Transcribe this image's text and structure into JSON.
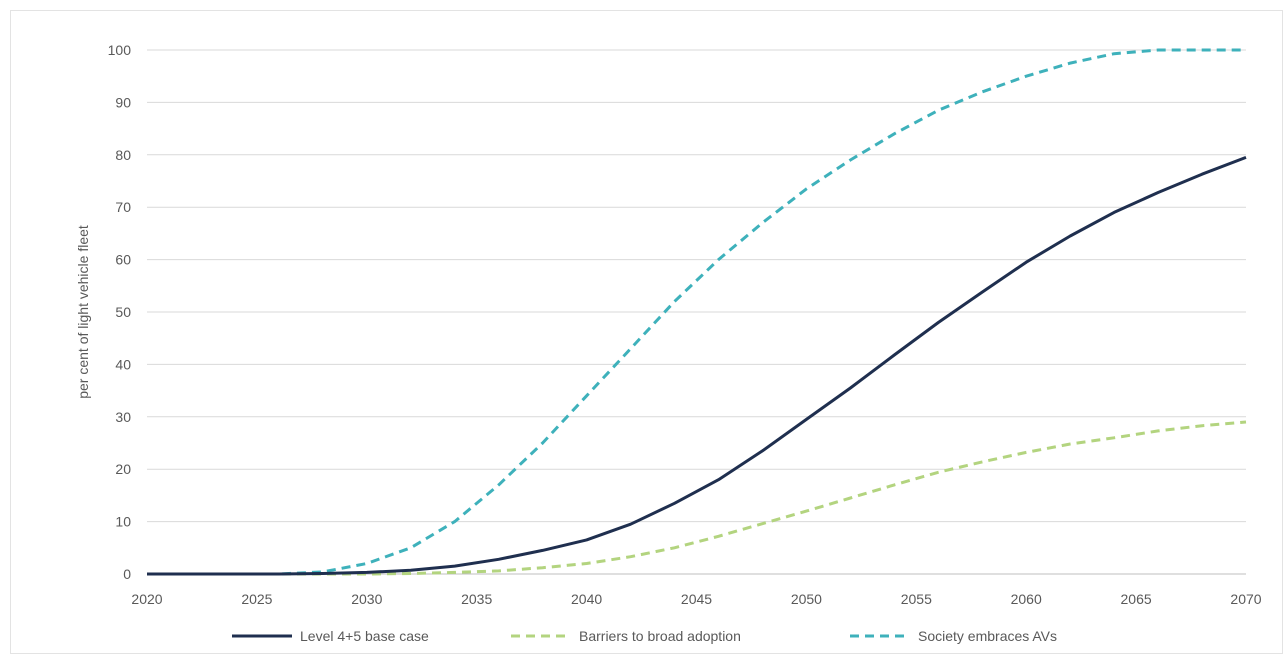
{
  "chart_data": {
    "type": "line",
    "title": "",
    "xlabel": "",
    "ylabel": "per cent of light vehicle fleet",
    "xlim": [
      2020,
      2070
    ],
    "ylim": [
      0,
      100
    ],
    "x_ticks": [
      "2020",
      "2025",
      "2030",
      "2035",
      "2040",
      "2045",
      "2050",
      "2055",
      "2060",
      "2065",
      "2070"
    ],
    "y_ticks": [
      "0",
      "10",
      "20",
      "30",
      "40",
      "50",
      "60",
      "70",
      "80",
      "90",
      "100"
    ],
    "grid": "horizontal",
    "legend_position": "bottom",
    "x": [
      2020,
      2022,
      2024,
      2026,
      2028,
      2030,
      2032,
      2034,
      2036,
      2038,
      2040,
      2042,
      2044,
      2046,
      2048,
      2050,
      2052,
      2054,
      2056,
      2058,
      2060,
      2062,
      2064,
      2066,
      2068,
      2070
    ],
    "series": [
      {
        "name": "Level 4+5 base case",
        "color": "#1f2f4f",
        "dash": "solid",
        "values": [
          0,
          0,
          0,
          0,
          0.1,
          0.3,
          0.7,
          1.5,
          2.8,
          4.5,
          6.5,
          9.5,
          13.5,
          18,
          23.5,
          29.5,
          35.5,
          41.8,
          48,
          53.8,
          59.5,
          64.5,
          69,
          72.8,
          76.3,
          79.5
        ]
      },
      {
        "name": "Barriers to broad adoption",
        "color": "#b3d47f",
        "dash": "dashed",
        "values": [
          0,
          0,
          0,
          0,
          0,
          0,
          0.1,
          0.3,
          0.6,
          1.2,
          2,
          3.3,
          5,
          7.2,
          9.6,
          12,
          14.5,
          17,
          19.4,
          21.4,
          23.2,
          24.8,
          26,
          27.3,
          28.3,
          29
        ]
      },
      {
        "name": "Society embraces AVs",
        "color": "#3eb1bb",
        "dash": "dashed",
        "values": [
          0,
          0,
          0,
          0,
          0.4,
          2,
          5,
          10,
          17,
          25,
          34,
          43,
          52,
          60,
          67,
          73.5,
          79,
          84,
          88.5,
          92,
          95,
          97.5,
          99.3,
          100,
          100,
          100
        ]
      }
    ]
  }
}
